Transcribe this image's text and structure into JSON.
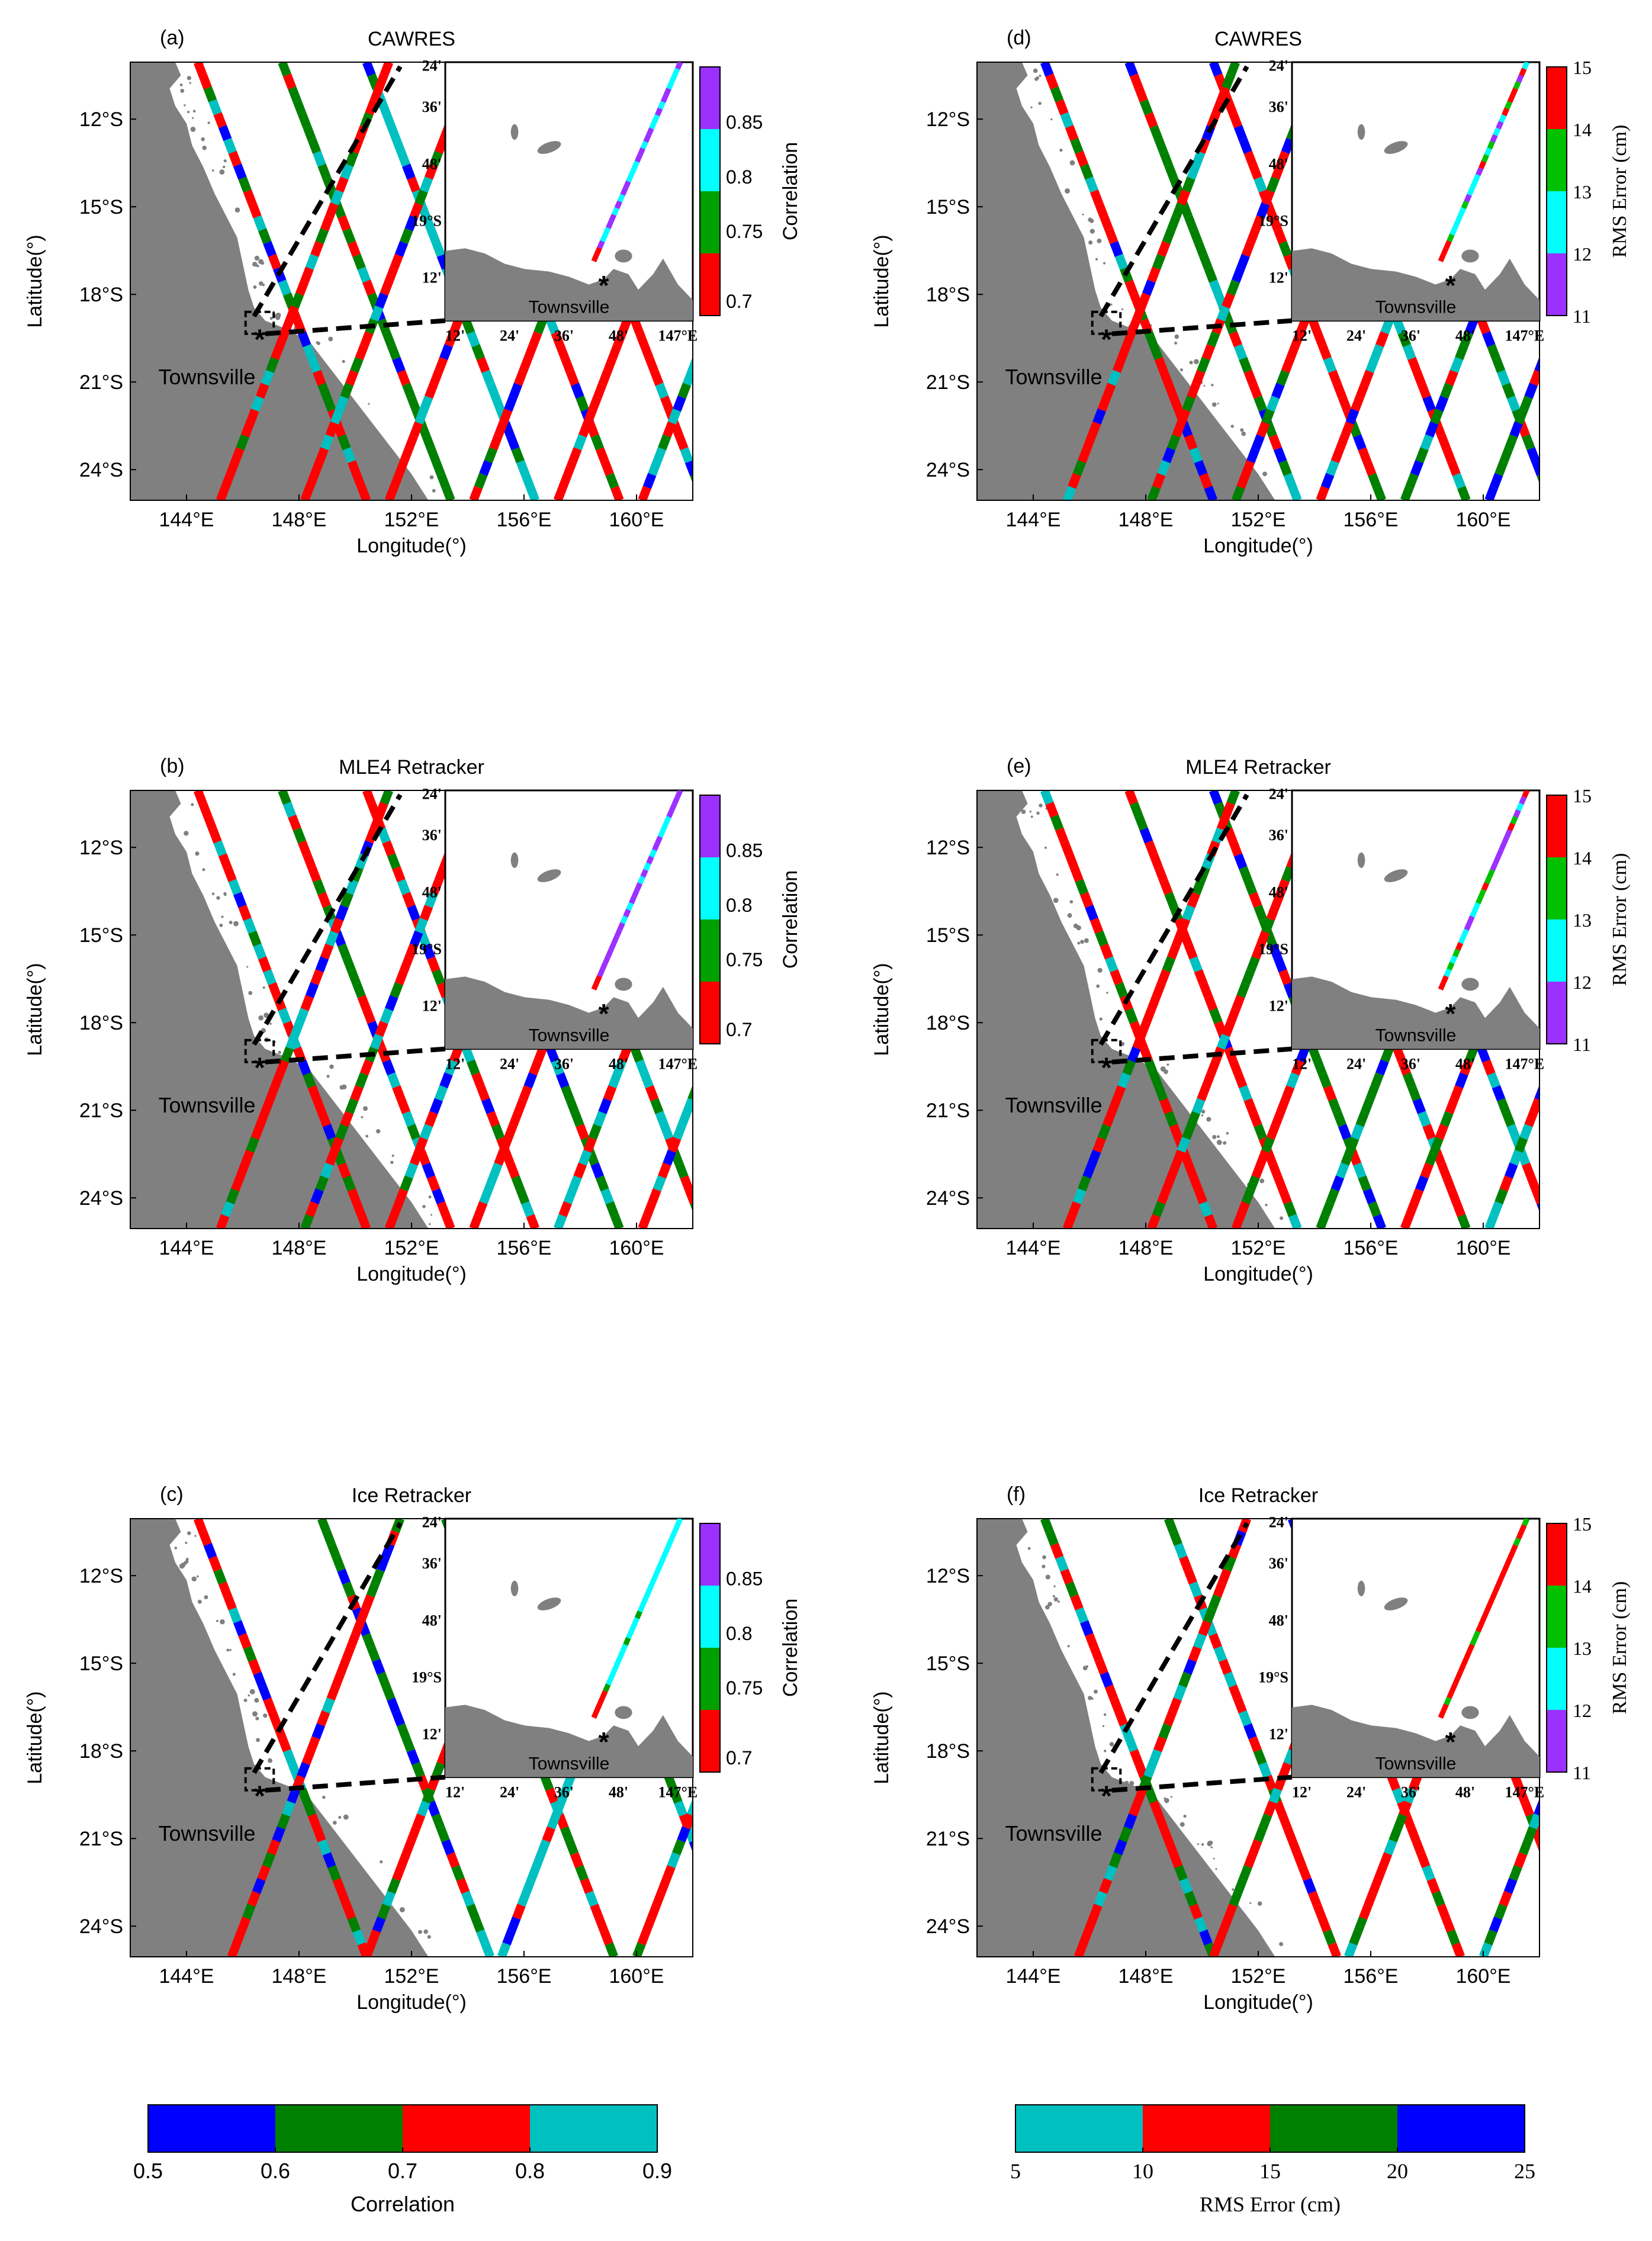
{
  "figure": {
    "common": {
      "lat_ticks": [
        "12°S",
        "15°S",
        "18°S",
        "21°S",
        "24°S"
      ],
      "lon_ticks": [
        "144°E",
        "148°E",
        "152°E",
        "156°E",
        "160°E"
      ],
      "xlabel": "Longitude(°)",
      "ylabel": "Latitude(°)",
      "city_label": "Townsville",
      "inset_lat_ticks": [
        "24'",
        "36'",
        "48'",
        "19°S",
        "12'"
      ],
      "inset_lon_ticks": [
        "12'",
        "24'",
        "36'",
        "48'",
        "147°E"
      ]
    },
    "panels": [
      {
        "id": "a",
        "letter": "(a)",
        "title": "CAWRES",
        "metric": "corr",
        "inset_track": "violet"
      },
      {
        "id": "b",
        "letter": "(b)",
        "title": "MLE4 Retracker",
        "metric": "corr",
        "inset_track": "violet"
      },
      {
        "id": "c",
        "letter": "(c)",
        "title": "Ice Retracker",
        "metric": "corr",
        "inset_track": "cyan"
      },
      {
        "id": "d",
        "letter": "(d)",
        "title": "CAWRES",
        "metric": "rms",
        "inset_track": "mixed"
      },
      {
        "id": "e",
        "letter": "(e)",
        "title": "MLE4 Retracker",
        "metric": "rms",
        "inset_track": "mixed"
      },
      {
        "id": "f",
        "letter": "(f)",
        "title": "Ice Retracker",
        "metric": "rms",
        "inset_track": "red"
      }
    ],
    "inset_colorbars": {
      "corr": {
        "label": "Correlation",
        "ticks": [
          "0.85",
          "0.8",
          "0.75",
          "0.7"
        ],
        "colors": [
          "#9b30ff",
          "#00ffff",
          "#00a000",
          "#ff0000"
        ]
      },
      "rms": {
        "label": "RMS Error (cm)",
        "ticks": [
          "15",
          "14",
          "13",
          "12",
          "11"
        ],
        "colors": [
          "#ff0000",
          "#00c000",
          "#00ffff",
          "#9b30ff"
        ]
      }
    },
    "main_colorbars": {
      "corr": {
        "label": "Correlation",
        "ticks": [
          "0.5",
          "0.6",
          "0.7",
          "0.8",
          "0.9"
        ],
        "colors": [
          "#0000ff",
          "#008000",
          "#ff0000",
          "#00c0c0"
        ]
      },
      "rms": {
        "label": "RMS Error (cm)",
        "ticks": [
          "5",
          "10",
          "15",
          "20",
          "25"
        ],
        "colors": [
          "#00c0c0",
          "#ff0000",
          "#008000",
          "#0000ff"
        ]
      }
    },
    "colors": {
      "land": "#808080",
      "corr": [
        "#0000ff",
        "#008000",
        "#ff0000",
        "#00c0c0"
      ],
      "rms": [
        "#00c0c0",
        "#ff0000",
        "#008000",
        "#0000ff"
      ]
    }
  },
  "chart_data": [
    {
      "type": "map",
      "panel": "(a)",
      "title": "CAWRES",
      "xlabel": "Longitude(°)",
      "ylabel": "Latitude(°)",
      "xlim": [
        142,
        162
      ],
      "ylim": [
        -25,
        -10
      ],
      "variable": "Correlation",
      "track_value_classes": [
        "0.5-0.6",
        "0.6-0.7",
        "0.7-0.8",
        "0.8-0.9"
      ]
    },
    {
      "type": "map",
      "panel": "(b)",
      "title": "MLE4 Retracker",
      "xlabel": "Longitude(°)",
      "ylabel": "Latitude(°)",
      "xlim": [
        142,
        162
      ],
      "ylim": [
        -25,
        -10
      ],
      "variable": "Correlation"
    },
    {
      "type": "map",
      "panel": "(c)",
      "title": "Ice Retracker",
      "xlabel": "Longitude(°)",
      "ylabel": "Latitude(°)",
      "xlim": [
        142,
        162
      ],
      "ylim": [
        -25,
        -10
      ],
      "variable": "Correlation"
    },
    {
      "type": "map",
      "panel": "(d)",
      "title": "CAWRES",
      "xlabel": "Longitude(°)",
      "ylabel": "Latitude(°)",
      "xlim": [
        142,
        162
      ],
      "ylim": [
        -25,
        -10
      ],
      "variable": "RMS Error (cm)",
      "track_value_classes": [
        "5-10",
        "10-15",
        "15-20",
        "20-25"
      ]
    },
    {
      "type": "map",
      "panel": "(e)",
      "title": "MLE4 Retracker",
      "xlabel": "Longitude(°)",
      "ylabel": "Latitude(°)",
      "xlim": [
        142,
        162
      ],
      "ylim": [
        -25,
        -10
      ],
      "variable": "RMS Error (cm)"
    },
    {
      "type": "map",
      "panel": "(f)",
      "title": "Ice Retracker",
      "xlabel": "Longitude(°)",
      "ylabel": "Latitude(°)",
      "xlim": [
        142,
        162
      ],
      "ylim": [
        -25,
        -10
      ],
      "variable": "RMS Error (cm)"
    }
  ]
}
